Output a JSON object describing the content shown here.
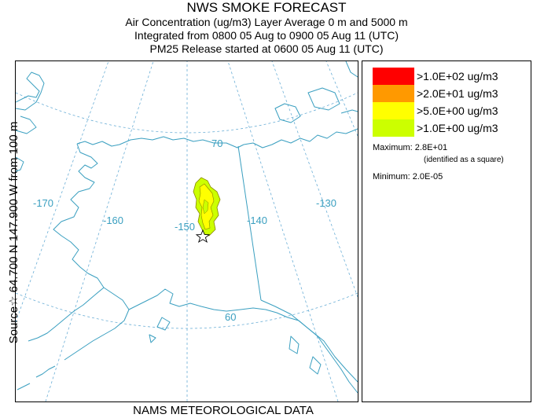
{
  "title": {
    "line1": "NWS SMOKE FORECAST",
    "line2": "Air Concentration (ug/m3) Layer Average    0 m and  5000 m",
    "line3": "Integrated from 0800 05 Aug to 0900 05 Aug 11 (UTC)",
    "line4": "PM25 Release started at 0600 05 Aug 11 (UTC)"
  },
  "side_label": "Source☆ 64.700  N 147.900  W    from  100 m",
  "footer": "NAMS METEOROLOGICAL DATA",
  "map": {
    "longitude_labels": [
      "-170",
      "-160",
      "-150",
      "-140",
      "-130"
    ],
    "latitude_labels": [
      "70",
      "60"
    ],
    "source_marker_icon": "open-star-icon",
    "colors": {
      "grid": "#6aaed6",
      "coast": "#3a9fc0"
    },
    "plume_levels": [
      {
        "threshold": ">1.0E+00 ug/m3",
        "color": "#ccff00"
      },
      {
        "threshold": ">5.0E+00 ug/m3",
        "color": "#ffff00"
      }
    ]
  },
  "legend": {
    "entries": [
      {
        "color": "#ff0000",
        "label": ">1.0E+02 ug/m3"
      },
      {
        "color": "#ff9900",
        "label": ">2.0E+01 ug/m3"
      },
      {
        "color": "#ffff00",
        "label": ">5.0E+00 ug/m3"
      },
      {
        "color": "#ccff00",
        "label": ">1.0E+00 ug/m3"
      }
    ],
    "maximum_label": "Maximum: 2.8E+01",
    "maximum_note": "(identified as a square)",
    "minimum_label": "Minimum: 2.0E-05"
  }
}
